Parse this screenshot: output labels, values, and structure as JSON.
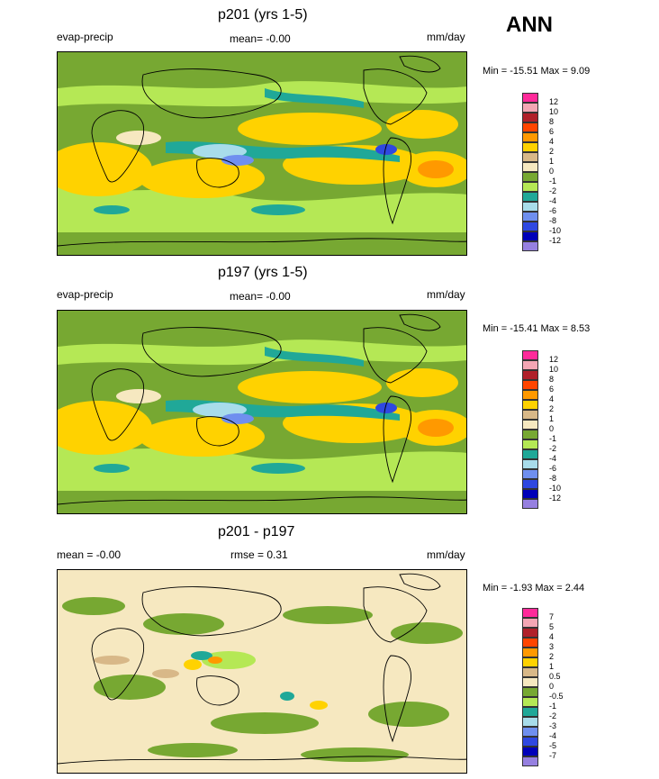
{
  "season": "ANN",
  "panels": [
    {
      "title": "p201 (yrs 1-5)",
      "left": "evap-precip",
      "center": "mean=  -0.00",
      "right": "mm/day",
      "minmax": "Min = -15.51 Max =   9.09",
      "levels": [
        "12",
        "10",
        "8",
        "6",
        "4",
        "2",
        "1",
        "0",
        "-1",
        "-2",
        "-4",
        "-6",
        "-8",
        "-10",
        "-12"
      ],
      "colors": [
        "#ff2a9a",
        "#f4a6b4",
        "#b0202a",
        "#ff4500",
        "#ff9900",
        "#ffd200",
        "#d8b888",
        "#f6e8c0",
        "#77a832",
        "#b5e855",
        "#20a898",
        "#a8dcea",
        "#6f8fef",
        "#2f48e0",
        "#0000b8",
        "#9680e0"
      ]
    },
    {
      "title": "p197 (yrs 1-5)",
      "left": "evap-precip",
      "center": "mean=  -0.00",
      "right": "mm/day",
      "minmax": "Min = -15.41 Max =   8.53",
      "levels": [
        "12",
        "10",
        "8",
        "6",
        "4",
        "2",
        "1",
        "0",
        "-1",
        "-2",
        "-4",
        "-6",
        "-8",
        "-10",
        "-12"
      ],
      "colors": [
        "#ff2a9a",
        "#f4a6b4",
        "#b0202a",
        "#ff4500",
        "#ff9900",
        "#ffd200",
        "#d8b888",
        "#f6e8c0",
        "#77a832",
        "#b5e855",
        "#20a898",
        "#a8dcea",
        "#6f8fef",
        "#2f48e0",
        "#0000b8",
        "#9680e0"
      ]
    },
    {
      "title": "p201 - p197",
      "left": "mean =  -0.00",
      "center": "rmse =   0.31",
      "right": "mm/day",
      "minmax": "Min =  -1.93 Max =   2.44",
      "levels": [
        "7",
        "5",
        "4",
        "3",
        "2",
        "1",
        "0.5",
        "0",
        "-0.5",
        "-1",
        "-2",
        "-3",
        "-4",
        "-5",
        "-7"
      ],
      "colors": [
        "#ff2a9a",
        "#f4a6b4",
        "#b0202a",
        "#ff4500",
        "#ff9900",
        "#ffd200",
        "#d8b888",
        "#f6e8c0",
        "#77a832",
        "#b5e855",
        "#20a898",
        "#a8dcea",
        "#6f8fef",
        "#2f48e0",
        "#0000b8",
        "#9680e0"
      ]
    }
  ]
}
